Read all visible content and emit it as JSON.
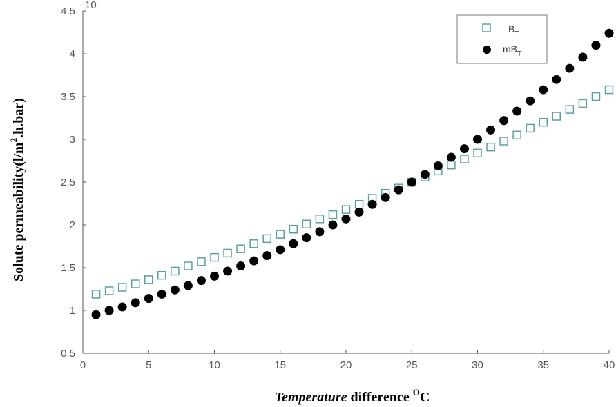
{
  "chart_data": {
    "type": "scatter",
    "xlabel_parts": {
      "italic": "Temperature",
      "rest": " difference ",
      "sup": "O",
      "unit": "C"
    },
    "ylabel_parts": {
      "pre": "Solute permeability(l/m",
      "sup": "2",
      "post": ".h.bar)"
    },
    "exponent_fragment": "10",
    "xlim": [
      0,
      40
    ],
    "ylim": [
      0.5,
      4.5
    ],
    "xticks": [
      0,
      5,
      10,
      15,
      20,
      25,
      30,
      35,
      40
    ],
    "xtick_labels": [
      "0",
      "5",
      "10",
      "15",
      "20",
      "25",
      "30",
      "35",
      "40"
    ],
    "yticks": [
      0.5,
      1,
      1.5,
      2,
      2.5,
      3,
      3.5,
      4,
      4.5
    ],
    "ytick_labels": [
      "0.5",
      "1",
      "1.5",
      "2",
      "2.5",
      "3",
      "3.5",
      "4",
      "4.5"
    ],
    "grid": false,
    "legend_position": "top-right",
    "legend": [
      {
        "main": "B",
        "sub": "T",
        "marker": "open-square",
        "color": "#5aa0a0"
      },
      {
        "main": "mB",
        "sub": "T",
        "marker": "filled-circle",
        "color": "#000000"
      }
    ],
    "series": [
      {
        "name": "BT",
        "x": [
          1,
          2,
          3,
          4,
          5,
          6,
          7,
          8,
          9,
          10,
          11,
          12,
          13,
          14,
          15,
          16,
          17,
          18,
          19,
          20,
          21,
          22,
          23,
          24,
          25,
          26,
          27,
          28,
          29,
          30,
          31,
          32,
          33,
          34,
          35,
          36,
          37,
          38,
          39,
          40
        ],
        "y": [
          1.19,
          1.23,
          1.27,
          1.31,
          1.36,
          1.41,
          1.46,
          1.52,
          1.57,
          1.62,
          1.67,
          1.72,
          1.78,
          1.84,
          1.89,
          1.95,
          2.01,
          2.07,
          2.12,
          2.18,
          2.24,
          2.31,
          2.37,
          2.43,
          2.5,
          2.56,
          2.63,
          2.7,
          2.77,
          2.84,
          2.91,
          2.98,
          3.05,
          3.13,
          3.2,
          3.27,
          3.35,
          3.42,
          3.5,
          3.58
        ]
      },
      {
        "name": "mBT",
        "x": [
          1,
          2,
          3,
          4,
          5,
          6,
          7,
          8,
          9,
          10,
          11,
          12,
          13,
          14,
          15,
          16,
          17,
          18,
          19,
          20,
          21,
          22,
          23,
          24,
          25,
          26,
          27,
          28,
          29,
          30,
          31,
          32,
          33,
          34,
          35,
          36,
          37,
          38,
          39,
          40
        ],
        "y": [
          0.95,
          1.0,
          1.04,
          1.09,
          1.14,
          1.19,
          1.24,
          1.29,
          1.35,
          1.4,
          1.46,
          1.52,
          1.58,
          1.64,
          1.71,
          1.78,
          1.85,
          1.92,
          2.0,
          2.07,
          2.15,
          2.24,
          2.32,
          2.41,
          2.5,
          2.59,
          2.69,
          2.79,
          2.89,
          3.0,
          3.11,
          3.22,
          3.33,
          3.45,
          3.58,
          3.7,
          3.83,
          3.96,
          4.1,
          4.24
        ]
      }
    ]
  }
}
